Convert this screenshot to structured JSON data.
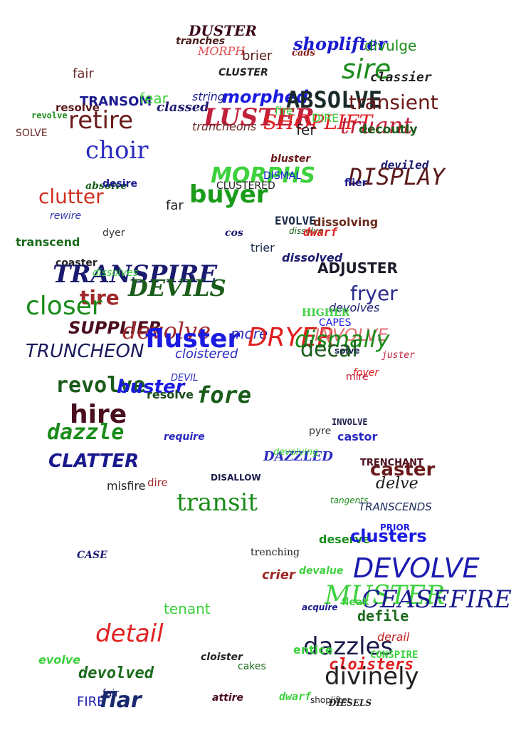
{
  "colors": {
    "maroon": "#4a0e1e",
    "dark_red": "#7a2a2a",
    "red": "#e02020",
    "crimson": "#c0203a",
    "green": "#1a8c1a",
    "light_green": "#3dd13d",
    "dark_green": "#1a5c1a",
    "blue": "#1a1ae0",
    "navy": "#1a1a6e",
    "dark_navy": "#1a2a5c",
    "black": "#222222"
  },
  "words": [
    "DUSTER",
    "tranches",
    "MORPH",
    "brier",
    "shoplifter",
    "divulge",
    "cads",
    "sire",
    "fair",
    "CLUSTER",
    "classier",
    "morphed",
    "ABSOLVE",
    "transient",
    "TRANSOM",
    "fear",
    "string",
    "resolve",
    "classed",
    "LUSTER",
    "SHOPLIFT",
    "truant",
    "revolve",
    "retire",
    "fire",
    "DIRE",
    "fer",
    "decoutly",
    "SOLVE",
    "truncheons",
    "choir",
    "bluster",
    "deviled",
    "MORPHS",
    "DISMAL",
    "DISPLAY",
    "absolve",
    "desire",
    "CLUSTERED",
    "flier",
    "clutter",
    "buyer",
    "far",
    "rewire",
    "EVOLVE",
    "dissolving",
    "dyer",
    "cos",
    "dissolve",
    "dwarf",
    "transcend",
    "trier",
    "dissolved",
    "coaster",
    "ADJUSTER",
    "TRANSPIRE",
    "dissolves",
    "fryer",
    "DEVILS",
    "tire",
    "closer",
    "devolves",
    "HIGHER",
    "CAPES",
    "SUPPLIER",
    "devolve",
    "fluster",
    "more",
    "DRYER",
    "INVOLVE",
    "dismally",
    "TRUNCHEON",
    "decal",
    "cloistered",
    "solve",
    "juster",
    "foyer",
    "mire",
    "DEVIL",
    "revolve",
    "buster",
    "fore",
    "resolve",
    "hire",
    "INVOLVE",
    "dazzle",
    "pyre",
    "castor",
    "require",
    "CLATTER",
    "DAZZLED",
    "devolving",
    "TRENCHANT",
    "caster",
    "DISALLOW",
    "misfire",
    "dire",
    "delve",
    "transit",
    "tangents",
    "TRANSCENDS",
    "PRIOR",
    "deserve",
    "clusters",
    "CASE",
    "trenching",
    "DEVOLVE",
    "crier",
    "devalue",
    "MUSTER",
    "CEASEFIRE",
    "fleak",
    "tenant",
    "acquire",
    "defile",
    "detail",
    "derail",
    "dazzles",
    "entice",
    "CONSPIRE",
    "evolve",
    "cloister",
    "cakes",
    "cloisters",
    "devolved",
    "divinely",
    "fair",
    "FIRE",
    "flar",
    "attire",
    "dwarf",
    "shoplifter",
    "DIESELS"
  ]
}
